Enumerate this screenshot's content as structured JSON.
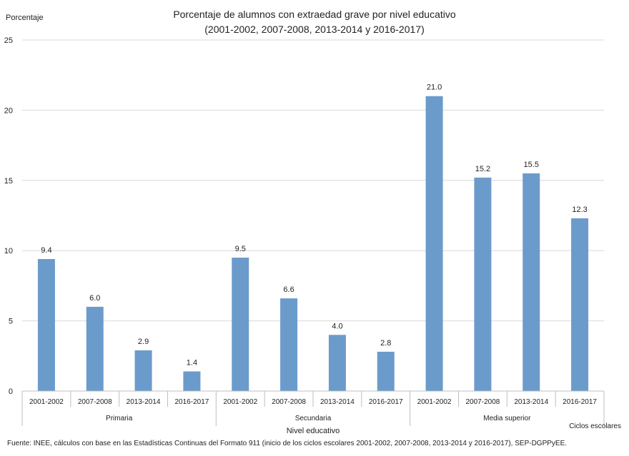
{
  "chart_data": {
    "type": "bar",
    "title": "Porcentaje de alumnos con extraedad grave por nivel educativo",
    "subtitle": "(2001-2002, 2007-2008, 2013-2014 y 2016-2017)",
    "ylabel": "Porcentaje",
    "xlabel": "Nivel educativo",
    "x_secondary_label": "Ciclos escolares",
    "ylim": [
      0,
      25
    ],
    "yticks": [
      0,
      5,
      10,
      15,
      20,
      25
    ],
    "grid": true,
    "bar_color": "#6b9bcb",
    "grid_color": "#d9d9d9",
    "groups": [
      {
        "name": "Primaria",
        "categories": [
          "2001-2002",
          "2007-2008",
          "2013-2014",
          "2016-2017"
        ],
        "values": [
          9.4,
          6.0,
          2.9,
          1.4
        ],
        "labels": [
          "9.4",
          "6.0",
          "2.9",
          "1.4"
        ]
      },
      {
        "name": "Secundaria",
        "categories": [
          "2001-2002",
          "2007-2008",
          "2013-2014",
          "2016-2017"
        ],
        "values": [
          9.5,
          6.6,
          4.0,
          2.8
        ],
        "labels": [
          "9.5",
          "6.6",
          "4.0",
          "2.8"
        ]
      },
      {
        "name": "Media superior",
        "categories": [
          "2001-2002",
          "2007-2008",
          "2013-2014",
          "2016-2017"
        ],
        "values": [
          21.0,
          15.2,
          15.5,
          12.3
        ],
        "labels": [
          "21.0",
          "15.2",
          "15.5",
          "12.3"
        ]
      }
    ]
  },
  "source_note": "Fuente: INEE, cálculos con base en las Estadísticas Continuas del Formato 911 (inicio de los ciclos escolares 2001-2002, 2007-2008, 2013-2014 y 2016-2017), SEP-DGPPyEE."
}
